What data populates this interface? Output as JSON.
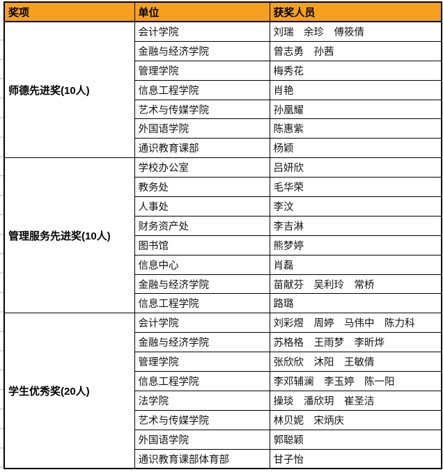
{
  "colors": {
    "header_bg": "#F6A01F",
    "border": "#000000",
    "grid_stub": "#B5B5B5",
    "text": "#111111"
  },
  "table": {
    "headers": {
      "award": "奖项",
      "unit": "单位",
      "winners": "获奖人员"
    },
    "sections": [
      {
        "award": "师德先进奖(10人)",
        "rows": [
          {
            "unit": "会计学院",
            "names": "刘瑞　余珍　傅筱倩"
          },
          {
            "unit": "金融与经济学院",
            "names": "曾志勇　孙茜"
          },
          {
            "unit": "管理学院",
            "names": "梅秀花"
          },
          {
            "unit": "信息工程学院",
            "names": "肖艳"
          },
          {
            "unit": "艺术与传媒学院",
            "names": "孙凰耀"
          },
          {
            "unit": "外国语学院",
            "names": "陈惠紫"
          },
          {
            "unit": "通识教育课部",
            "names": "杨颖"
          }
        ]
      },
      {
        "award": "管理服务先进奖(10人)",
        "rows": [
          {
            "unit": "学校办公室",
            "names": "吕妍欣"
          },
          {
            "unit": "教务处",
            "names": "毛华荣"
          },
          {
            "unit": "人事处",
            "names": "李汶"
          },
          {
            "unit": "财务资产处",
            "names": "李吉淋"
          },
          {
            "unit": "图书馆",
            "names": "熊梦婷"
          },
          {
            "unit": "信息中心",
            "names": "肖磊"
          },
          {
            "unit": "金融与经济学院",
            "names": "苗献芬　吴利玲　常桥"
          },
          {
            "unit": "信息工程学院",
            "names": "路璐"
          }
        ]
      },
      {
        "award": "学生优秀奖(20人)",
        "rows": [
          {
            "unit": "会计学院",
            "names": "刘彩煜　周婷　马伟中　陈力科"
          },
          {
            "unit": "金融与经济学院",
            "names": "苏格格　王雨梦　李昕烨"
          },
          {
            "unit": "管理学院",
            "names": "张欣欣　沐阳　王敏倩"
          },
          {
            "unit": "信息工程学院",
            "names": "李邓辅澜　李玉婷　陈一阳"
          },
          {
            "unit": "法学院",
            "names": "操琰　潘欣玥　崔圣洁"
          },
          {
            "unit": "艺术与传媒学院",
            "names": "林贝妮　宋炳庆"
          },
          {
            "unit": "外国语学院",
            "names": "郭聪颖"
          },
          {
            "unit": "通识教育课部体育部",
            "names": "甘子怡"
          }
        ]
      }
    ]
  }
}
